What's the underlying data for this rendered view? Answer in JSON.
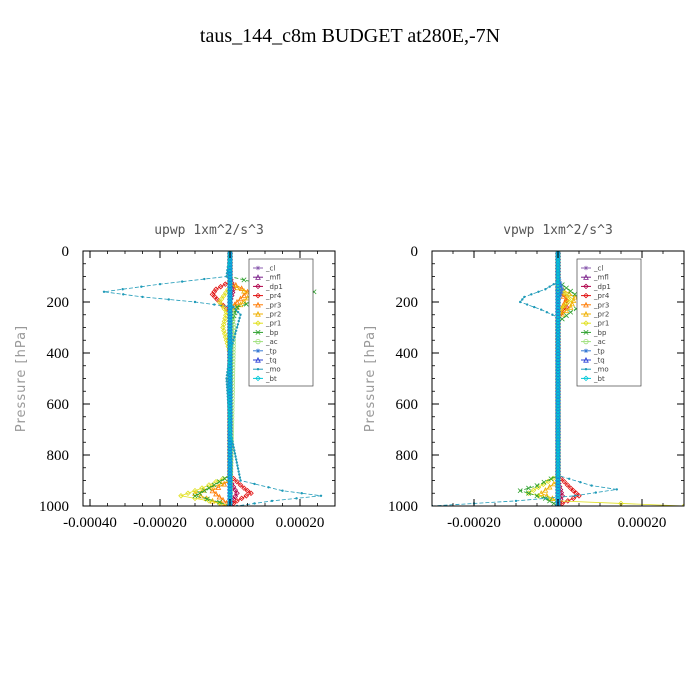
{
  "figure": {
    "title": "taus_144_c8m  BUDGET at280E,-7N"
  },
  "chart_data": [
    {
      "type": "line",
      "title": "upwp   1xm^2/s^3",
      "ylabel": "Pressure [hPa]",
      "xlabel": "",
      "xlim": [
        -0.00042,
        0.0003
      ],
      "ylim": [
        1000,
        0
      ],
      "xticks": [
        -0.0004,
        -0.0002,
        0.0,
        0.0002
      ],
      "xtick_labels": [
        "-0.00040",
        "-0.00020",
        "0.00000",
        "0.00020"
      ],
      "yticks": [
        0,
        200,
        400,
        600,
        800,
        1000
      ],
      "ytick_labels": [
        "0",
        "200",
        "400",
        "600",
        "800",
        "1000"
      ],
      "legend_position": "top-right",
      "series": [
        {
          "name": "_cl",
          "color": "#8c5fb0",
          "points": [
            [
              0,
              0
            ],
            [
              0,
              1000
            ]
          ]
        },
        {
          "name": "_mfl",
          "color": "#7a1f8a",
          "points": [
            [
              0,
              0
            ],
            [
              0,
              1000
            ]
          ]
        },
        {
          "name": "_dp1",
          "color": "#b0004a",
          "points": [
            [
              0,
              0
            ],
            [
              0,
              100
            ],
            [
              1e-05,
              150
            ],
            [
              0,
              200
            ],
            [
              0,
              900
            ],
            [
              2e-05,
              950
            ],
            [
              0,
              1000
            ]
          ]
        },
        {
          "name": "_pr4",
          "color": "#e01010",
          "points": [
            [
              0,
              0
            ],
            [
              0,
              120
            ],
            [
              -4e-05,
              150
            ],
            [
              -5e-05,
              170
            ],
            [
              -3e-05,
              200
            ],
            [
              0,
              240
            ],
            [
              0,
              880
            ],
            [
              4e-05,
              930
            ],
            [
              6e-05,
              950
            ],
            [
              2e-05,
              980
            ],
            [
              0,
              1000
            ]
          ]
        },
        {
          "name": "_pr3",
          "color": "#ff7a00",
          "points": [
            [
              0,
              0
            ],
            [
              0,
              120
            ],
            [
              5e-05,
              160
            ],
            [
              2e-05,
              200
            ],
            [
              0,
              230
            ],
            [
              0,
              900
            ],
            [
              -5e-05,
              940
            ],
            [
              0,
              1000
            ]
          ]
        },
        {
          "name": "_pr2",
          "color": "#f0b000",
          "points": [
            [
              0,
              0
            ],
            [
              0,
              130
            ],
            [
              6e-05,
              170
            ],
            [
              3e-05,
              210
            ],
            [
              0,
              240
            ],
            [
              0,
              900
            ],
            [
              -0.0001,
              950
            ],
            [
              -5e-05,
              980
            ],
            [
              0,
              1000
            ]
          ]
        },
        {
          "name": "_pr1",
          "color": "#e0e020",
          "points": [
            [
              0,
              0
            ],
            [
              0,
              140
            ],
            [
              -3e-05,
              200
            ],
            [
              -1e-05,
              240
            ],
            [
              -2e-05,
              300
            ],
            [
              0,
              400
            ],
            [
              0,
              880
            ],
            [
              -8e-05,
              930
            ],
            [
              -0.00014,
              960
            ],
            [
              -6e-05,
              980
            ],
            [
              0,
              1000
            ]
          ]
        },
        {
          "name": "_bp",
          "color": "#2ca02c",
          "points": [
            [
              0,
              0
            ],
            [
              0,
              100
            ],
            [
              0.00012,
              140
            ],
            [
              0.00024,
              160
            ],
            [
              0.0001,
              185
            ],
            [
              2e-05,
              220
            ],
            [
              0,
              300
            ],
            [
              0,
              880
            ],
            [
              -6e-05,
              930
            ],
            [
              -0.0001,
              960
            ],
            [
              -3e-05,
              985
            ],
            [
              0,
              1000
            ]
          ]
        },
        {
          "name": "_ac",
          "color": "#9de07a",
          "points": [
            [
              0,
              0
            ],
            [
              0,
              200
            ],
            [
              1e-05,
              300
            ],
            [
              0,
              1000
            ]
          ]
        },
        {
          "name": "_tp",
          "color": "#3a7bd5",
          "points": [
            [
              0,
              0
            ],
            [
              0,
              1000
            ]
          ]
        },
        {
          "name": "_tq",
          "color": "#2b3fd6",
          "points": [
            [
              0,
              0
            ],
            [
              0,
              1000
            ]
          ]
        },
        {
          "name": "_mo",
          "color": "#1e9ab8",
          "points": [
            [
              0,
              0
            ],
            [
              -1e-05,
              100
            ],
            [
              -0.0002,
              130
            ],
            [
              -0.00036,
              160
            ],
            [
              -0.00025,
              180
            ],
            [
              -0.0001,
              200
            ],
            [
              1e-05,
              220
            ],
            [
              3e-05,
              250
            ],
            [
              2e-05,
              300
            ],
            [
              0,
              400
            ],
            [
              -1e-05,
              500
            ],
            [
              0,
              700
            ],
            [
              3e-05,
              900
            ],
            [
              0.00015,
              940
            ],
            [
              0.00026,
              960
            ],
            [
              0.00012,
              980
            ],
            [
              2e-05,
              1000
            ]
          ]
        },
        {
          "name": "_bt",
          "color": "#00c8d8",
          "points": [
            [
              0,
              0
            ],
            [
              0,
              1000
            ]
          ]
        }
      ]
    },
    {
      "type": "line",
      "title": "vpwp   1xm^2/s^3",
      "ylabel": "Pressure [hPa]",
      "xlabel": "",
      "xlim": [
        -0.0003,
        0.0003
      ],
      "ylim": [
        1000,
        0
      ],
      "xticks": [
        -0.0002,
        0.0,
        0.0002
      ],
      "xtick_labels": [
        "-0.00020",
        "0.00000",
        "0.00020"
      ],
      "yticks": [
        0,
        200,
        400,
        600,
        800,
        1000
      ],
      "ytick_labels": [
        "0",
        "200",
        "400",
        "600",
        "800",
        "1000"
      ],
      "legend_position": "top-right",
      "series": [
        {
          "name": "_cl",
          "color": "#8c5fb0",
          "points": [
            [
              0,
              0
            ],
            [
              0,
              1000
            ]
          ]
        },
        {
          "name": "_mfl",
          "color": "#7a1f8a",
          "points": [
            [
              0,
              0
            ],
            [
              0,
              1000
            ]
          ]
        },
        {
          "name": "_dp1",
          "color": "#b0004a",
          "points": [
            [
              0,
              0
            ],
            [
              0,
              900
            ],
            [
              1e-05,
              960
            ],
            [
              0,
              1000
            ]
          ]
        },
        {
          "name": "_pr4",
          "color": "#e01010",
          "points": [
            [
              0,
              0
            ],
            [
              0,
              150
            ],
            [
              2e-05,
              180
            ],
            [
              2e-05,
              220
            ],
            [
              0,
              260
            ],
            [
              0,
              880
            ],
            [
              3e-05,
              930
            ],
            [
              5e-05,
              960
            ],
            [
              1e-05,
              990
            ],
            [
              0,
              1000
            ]
          ]
        },
        {
          "name": "_pr3",
          "color": "#ff7a00",
          "points": [
            [
              0,
              0
            ],
            [
              0,
              150
            ],
            [
              2e-05,
              190
            ],
            [
              0,
              250
            ],
            [
              0,
              1000
            ]
          ]
        },
        {
          "name": "_pr2",
          "color": "#f0b000",
          "points": [
            [
              0,
              0
            ],
            [
              0,
              140
            ],
            [
              4e-05,
              180
            ],
            [
              3e-05,
              220
            ],
            [
              0,
              260
            ],
            [
              0,
              900
            ],
            [
              -4e-05,
              950
            ],
            [
              0,
              980
            ],
            [
              0,
              1000
            ]
          ]
        },
        {
          "name": "_pr1",
          "color": "#e0e020",
          "points": [
            [
              0,
              0
            ],
            [
              0,
              140
            ],
            [
              3e-05,
              190
            ],
            [
              0,
              240
            ],
            [
              0,
              880
            ],
            [
              -7e-05,
              950
            ],
            [
              0,
              980
            ],
            [
              0.0003,
              1000
            ]
          ]
        },
        {
          "name": "_bp",
          "color": "#2ca02c",
          "points": [
            [
              0,
              0
            ],
            [
              0,
              120
            ],
            [
              4e-05,
              170
            ],
            [
              7e-05,
              200
            ],
            [
              3e-05,
              240
            ],
            [
              0,
              280
            ],
            [
              0,
              880
            ],
            [
              -5e-05,
              920
            ],
            [
              -9e-05,
              940
            ],
            [
              -3e-05,
              970
            ],
            [
              0,
              1000
            ]
          ]
        },
        {
          "name": "_ac",
          "color": "#9de07a",
          "points": [
            [
              0,
              0
            ],
            [
              0,
              1000
            ]
          ]
        },
        {
          "name": "_tp",
          "color": "#3a7bd5",
          "points": [
            [
              0,
              0
            ],
            [
              0,
              100
            ],
            [
              1e-05,
              150
            ],
            [
              0,
              200
            ],
            [
              0,
              1000
            ]
          ]
        },
        {
          "name": "_tq",
          "color": "#2b3fd6",
          "points": [
            [
              0,
              0
            ],
            [
              0,
              1000
            ]
          ]
        },
        {
          "name": "_mo",
          "color": "#1e9ab8",
          "points": [
            [
              0,
              0
            ],
            [
              0,
              120
            ],
            [
              -3e-05,
              150
            ],
            [
              -8e-05,
              180
            ],
            [
              -9e-05,
              200
            ],
            [
              -4e-05,
              230
            ],
            [
              0,
              260
            ],
            [
              0,
              880
            ],
            [
              8e-05,
              920
            ],
            [
              0.00014,
              935
            ],
            [
              4e-05,
              960
            ],
            [
              -0.0001,
              980
            ],
            [
              -0.0003,
              1000
            ]
          ]
        },
        {
          "name": "_bt",
          "color": "#00c8d8",
          "points": [
            [
              0,
              0
            ],
            [
              0,
              1000
            ]
          ]
        }
      ]
    }
  ]
}
